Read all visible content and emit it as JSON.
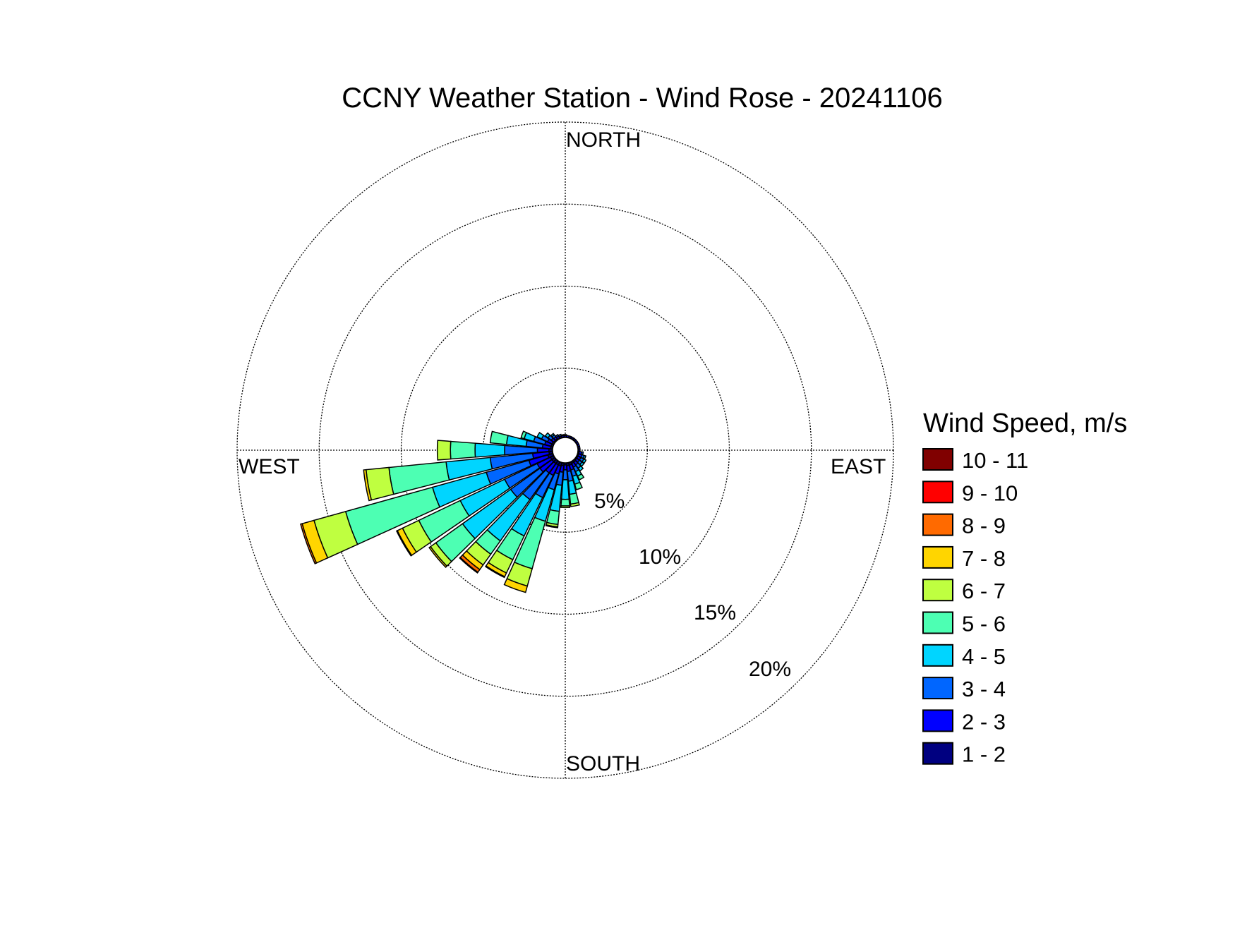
{
  "chart_data": {
    "type": "wind-rose",
    "title": "CCNY Weather Station - Wind Rose - 20241106",
    "compass": {
      "north": "NORTH",
      "east": "EAST",
      "south": "SOUTH",
      "west": "WEST"
    },
    "radial_axis": {
      "unit": "%",
      "max": 20,
      "gridlines": [
        5,
        10,
        15,
        20
      ],
      "tick_labels": [
        "5%",
        "10%",
        "15%",
        "20%"
      ]
    },
    "grid": true,
    "legend": {
      "title": "Wind Speed, m/s",
      "placement": "right",
      "entries": [
        {
          "label": "10 - 11",
          "color": "#800000"
        },
        {
          "label": "9 - 10",
          "color": "#ff0000"
        },
        {
          "label": "8 - 9",
          "color": "#ff6a00"
        },
        {
          "label": "7 - 8",
          "color": "#ffd500"
        },
        {
          "label": "6 - 7",
          "color": "#bfff40"
        },
        {
          "label": "5 - 6",
          "color": "#4dffb3"
        },
        {
          "label": "4 - 5",
          "color": "#00d5ff"
        },
        {
          "label": "3 - 4",
          "color": "#0066ff"
        },
        {
          "label": "2 - 3",
          "color": "#0000ff"
        },
        {
          "label": "1 - 2",
          "color": "#000080"
        }
      ]
    },
    "sector_width_deg": 10,
    "speed_bins": [
      "1 - 2",
      "2 - 3",
      "3 - 4",
      "4 - 5",
      "5 - 6",
      "6 - 7",
      "7 - 8",
      "8 - 9",
      "9 - 10",
      "10 - 11"
    ],
    "calm_percent": 0.7,
    "sectors": [
      {
        "direction_deg": 0,
        "values": [
          0.1,
          0.1,
          0.05
        ]
      },
      {
        "direction_deg": 10,
        "values": [
          0.1,
          0.1
        ]
      },
      {
        "direction_deg": 20,
        "values": [
          0.1,
          0.1
        ]
      },
      {
        "direction_deg": 30,
        "values": [
          0.1,
          0.1
        ]
      },
      {
        "direction_deg": 40,
        "values": [
          0.1,
          0.1
        ]
      },
      {
        "direction_deg": 50,
        "values": [
          0.1,
          0.1
        ]
      },
      {
        "direction_deg": 60,
        "values": [
          0.1,
          0.1
        ]
      },
      {
        "direction_deg": 70,
        "values": [
          0.1,
          0.1
        ]
      },
      {
        "direction_deg": 80,
        "values": [
          0.1,
          0.1
        ]
      },
      {
        "direction_deg": 90,
        "values": [
          0.1,
          0.1
        ]
      },
      {
        "direction_deg": 100,
        "values": [
          0.15,
          0.15,
          0.1
        ]
      },
      {
        "direction_deg": 110,
        "values": [
          0.15,
          0.2,
          0.15,
          0.1
        ]
      },
      {
        "direction_deg": 120,
        "values": [
          0.15,
          0.2,
          0.2,
          0.15
        ]
      },
      {
        "direction_deg": 130,
        "values": [
          0.15,
          0.2,
          0.2,
          0.15
        ]
      },
      {
        "direction_deg": 140,
        "values": [
          0.2,
          0.2,
          0.25,
          0.2
        ]
      },
      {
        "direction_deg": 150,
        "values": [
          0.2,
          0.25,
          0.3,
          0.3,
          0.25
        ]
      },
      {
        "direction_deg": 160,
        "values": [
          0.25,
          0.3,
          0.4,
          0.5,
          0.35
        ]
      },
      {
        "direction_deg": 170,
        "values": [
          0.25,
          0.35,
          0.6,
          0.8,
          0.6,
          0.15
        ]
      },
      {
        "direction_deg": 180,
        "values": [
          0.2,
          0.3,
          0.6,
          1.2,
          0.4,
          0.1
        ]
      },
      {
        "direction_deg": 190,
        "values": [
          0.25,
          0.4,
          0.8,
          1.6,
          0.8,
          0.15,
          0.05
        ]
      },
      {
        "direction_deg": 200,
        "values": [
          0.3,
          0.5,
          1.0,
          2.0,
          3.0,
          1.1,
          0.4
        ]
      },
      {
        "direction_deg": 210,
        "values": [
          0.3,
          0.7,
          1.5,
          2.6,
          1.6,
          0.9,
          0.25,
          0.05
        ]
      },
      {
        "direction_deg": 220,
        "values": [
          0.3,
          0.7,
          2.0,
          3.1,
          1.0,
          0.8,
          0.35,
          0.2,
          0.05
        ]
      },
      {
        "direction_deg": 230,
        "values": [
          0.3,
          0.9,
          2.2,
          3.6,
          2.0,
          0.4,
          0.1
        ]
      },
      {
        "direction_deg": 240,
        "values": [
          0.3,
          0.9,
          2.2,
          3.0,
          2.8,
          1.1,
          0.35,
          0.05
        ]
      },
      {
        "direction_deg": 250,
        "values": [
          0.4,
          1.2,
          2.7,
          3.4,
          5.5,
          2.0,
          0.75,
          0.1
        ]
      },
      {
        "direction_deg": 260,
        "values": [
          0.3,
          1.0,
          2.6,
          2.7,
          3.5,
          1.4,
          0.15
        ]
      },
      {
        "direction_deg": 270,
        "values": [
          0.3,
          0.7,
          2.0,
          1.8,
          1.5,
          0.8
        ]
      },
      {
        "direction_deg": 280,
        "values": [
          0.2,
          0.5,
          1.0,
          1.2,
          1.0
        ]
      },
      {
        "direction_deg": 290,
        "values": [
          0.2,
          0.4,
          0.7,
          0.6,
          0.2
        ]
      },
      {
        "direction_deg": 300,
        "values": [
          0.2,
          0.3,
          0.4,
          0.3
        ]
      },
      {
        "direction_deg": 310,
        "values": [
          0.15,
          0.2,
          0.25,
          0.2
        ]
      },
      {
        "direction_deg": 320,
        "values": [
          0.15,
          0.15,
          0.15,
          0.1
        ]
      },
      {
        "direction_deg": 330,
        "values": [
          0.1,
          0.15,
          0.1
        ]
      },
      {
        "direction_deg": 340,
        "values": [
          0.1,
          0.1,
          0.1
        ]
      },
      {
        "direction_deg": 350,
        "values": [
          0.1,
          0.1,
          0.05
        ]
      }
    ]
  }
}
